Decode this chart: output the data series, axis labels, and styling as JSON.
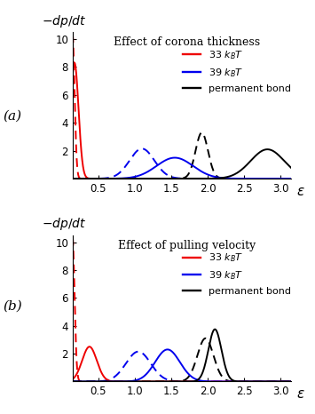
{
  "title_a": "Effect of corona thickness",
  "title_b": "Effect of pulling velocity",
  "ylabel": "$-dp/dt$",
  "xlabel": "$\\varepsilon$",
  "ylim": [
    0,
    10.5
  ],
  "xlim": [
    0.15,
    3.15
  ],
  "yticks": [
    2,
    4,
    6,
    8,
    10
  ],
  "xticks": [
    0.5,
    1.0,
    1.5,
    2.0,
    2.5,
    3.0
  ],
  "label_a": "(a)",
  "label_b": "(b)",
  "legend_labels": [
    "33 $k_B$$T$",
    "39 $k_B$$T$",
    "permanent bond"
  ],
  "colors": {
    "red": "#ee0000",
    "blue": "#0000ee",
    "black": "#000000"
  },
  "panel_a": {
    "red_solid": {
      "mu": 0.175,
      "sigma": 0.055,
      "amp": 8.3
    },
    "red_dashed": {
      "mu": 0.145,
      "sigma": 0.03,
      "amp": 10.5
    },
    "blue_solid": {
      "mu": 1.55,
      "sigma": 0.25,
      "amp": 1.5
    },
    "blue_dashed": {
      "mu": 1.1,
      "sigma": 0.17,
      "amp": 2.15
    },
    "black_solid": {
      "mu": 2.82,
      "sigma": 0.23,
      "amp": 2.1
    },
    "black_dashed": {
      "mu": 1.92,
      "sigma": 0.085,
      "amp": 3.3
    }
  },
  "panel_b": {
    "red_solid": {
      "mu": 0.38,
      "sigma": 0.1,
      "amp": 2.5
    },
    "red_dashed": {
      "mu": 0.145,
      "sigma": 0.03,
      "amp": 10.5
    },
    "blue_solid": {
      "mu": 1.45,
      "sigma": 0.17,
      "amp": 2.3
    },
    "blue_dashed": {
      "mu": 1.05,
      "sigma": 0.17,
      "amp": 2.15
    },
    "black_solid": {
      "mu": 2.1,
      "sigma": 0.09,
      "amp": 3.75
    },
    "black_dashed": {
      "mu": 1.97,
      "sigma": 0.11,
      "amp": 3.1
    }
  },
  "background": "#ffffff",
  "linewidth": 1.4,
  "dash_pattern": [
    5,
    3
  ]
}
